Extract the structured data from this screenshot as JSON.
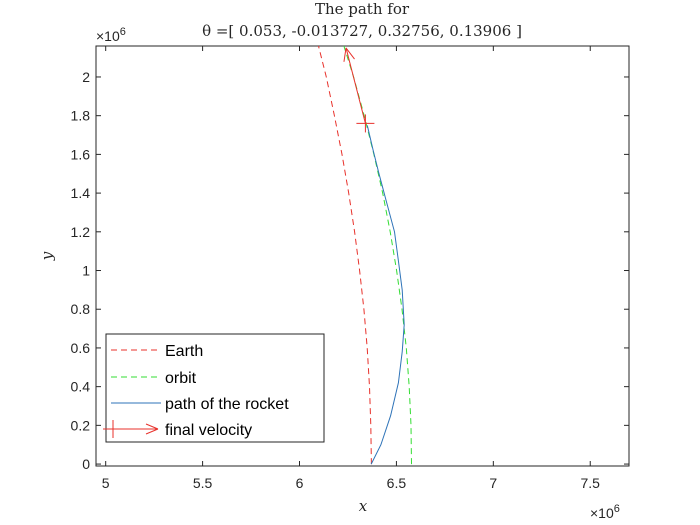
{
  "chart_data": {
    "type": "line",
    "title_line1": "The path for",
    "title_line2": "θ =[ 0.053, -0.013727, 0.32756, 0.13906 ]",
    "xlabel": "x",
    "ylabel": "y",
    "x_exponent": "×10",
    "x_exponent_power": "6",
    "y_exponent": "×10",
    "y_exponent_power": "6",
    "xlim": [
      4.95,
      7.7
    ],
    "ylim": [
      -0.01,
      2.16
    ],
    "x_ticks": [
      5,
      5.5,
      6,
      6.5,
      7,
      7.5
    ],
    "x_tick_labels": [
      "5",
      "5.5",
      "6",
      "6.5",
      "7",
      "7.5"
    ],
    "y_ticks": [
      0,
      0.2,
      0.4,
      0.6,
      0.8,
      1.0,
      1.2,
      1.4,
      1.6,
      1.8,
      2.0
    ],
    "y_tick_labels": [
      "0",
      "0.2",
      "0.4",
      "0.6",
      "0.8",
      "1",
      "1.2",
      "1.4",
      "1.6",
      "1.8",
      "2"
    ],
    "grid": false,
    "legend_position": "bottom-left",
    "series": [
      {
        "name": "Earth",
        "style": "dashed",
        "color": "#e8312b",
        "x": [
          6.371,
          6.368,
          6.361,
          6.349,
          6.332,
          6.31,
          6.284,
          6.254,
          6.219,
          6.18,
          6.138,
          6.098
        ],
        "y": [
          0.0,
          0.2,
          0.4,
          0.6,
          0.8,
          1.0,
          1.2,
          1.4,
          1.6,
          1.8,
          2.0,
          2.16
        ]
      },
      {
        "name": "orbit",
        "style": "dashed",
        "color": "#33dd33",
        "x": [
          6.578,
          6.575,
          6.566,
          6.551,
          6.529,
          6.501,
          6.468,
          6.429,
          6.384,
          6.334,
          6.279,
          6.229
        ],
        "y": [
          0.0,
          0.2,
          0.4,
          0.6,
          0.8,
          1.0,
          1.2,
          1.4,
          1.6,
          1.8,
          2.0,
          2.16
        ]
      },
      {
        "name": "path of the rocket",
        "style": "solid",
        "color": "#2e73b8",
        "x": [
          6.37,
          6.42,
          6.47,
          6.51,
          6.53,
          6.54,
          6.53,
          6.51,
          6.49,
          6.45,
          6.41,
          6.38,
          6.35
        ],
        "y": [
          0.0,
          0.1,
          0.25,
          0.42,
          0.58,
          0.72,
          0.9,
          1.05,
          1.2,
          1.35,
          1.5,
          1.62,
          1.75
        ]
      }
    ],
    "final_velocity": {
      "name": "final velocity",
      "color": "#e8312b",
      "start_x": 6.34,
      "start_y": 1.76,
      "end_x": 6.24,
      "end_y": 2.15
    }
  }
}
